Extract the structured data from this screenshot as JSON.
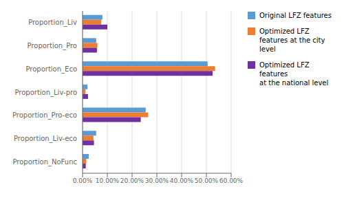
{
  "chart_data": {
    "type": "bar",
    "orientation": "horizontal",
    "categories": [
      "Proportion_NoFunc",
      "Proportion_Liv-eco",
      "Proportion_Pro-eco",
      "Proportion_Liv-pro",
      "Proportion_Eco",
      "Proportion_Pro",
      "Proportion_Liv"
    ],
    "series": [
      {
        "name": "Original LFZ features",
        "color": "#5B9BD5",
        "values": [
          0.025,
          0.055,
          0.255,
          0.02,
          0.505,
          0.055,
          0.08
        ]
      },
      {
        "name": "Optimized LFZ\nfeatures at the city level",
        "color": "#ED7D31",
        "values": [
          0.015,
          0.044,
          0.265,
          0.012,
          0.535,
          0.06,
          0.075
        ]
      },
      {
        "name": "Optimized LFZ features\nat the national level",
        "color": "#7030A0",
        "values": [
          0.013,
          0.046,
          0.235,
          0.022,
          0.525,
          0.058,
          0.1
        ]
      }
    ],
    "xlim": [
      0,
      0.6
    ],
    "xticks": [
      {
        "value": 0.0,
        "label": "0.00%"
      },
      {
        "value": 0.1,
        "label": "10.00%"
      },
      {
        "value": 0.2,
        "label": "20.00%"
      },
      {
        "value": 0.3,
        "label": "30.00%"
      },
      {
        "value": 0.4,
        "label": "40.00%"
      },
      {
        "value": 0.5,
        "label": "50.00%"
      },
      {
        "value": 0.6,
        "label": "60.00%"
      }
    ],
    "grid": true,
    "legend": "right"
  }
}
